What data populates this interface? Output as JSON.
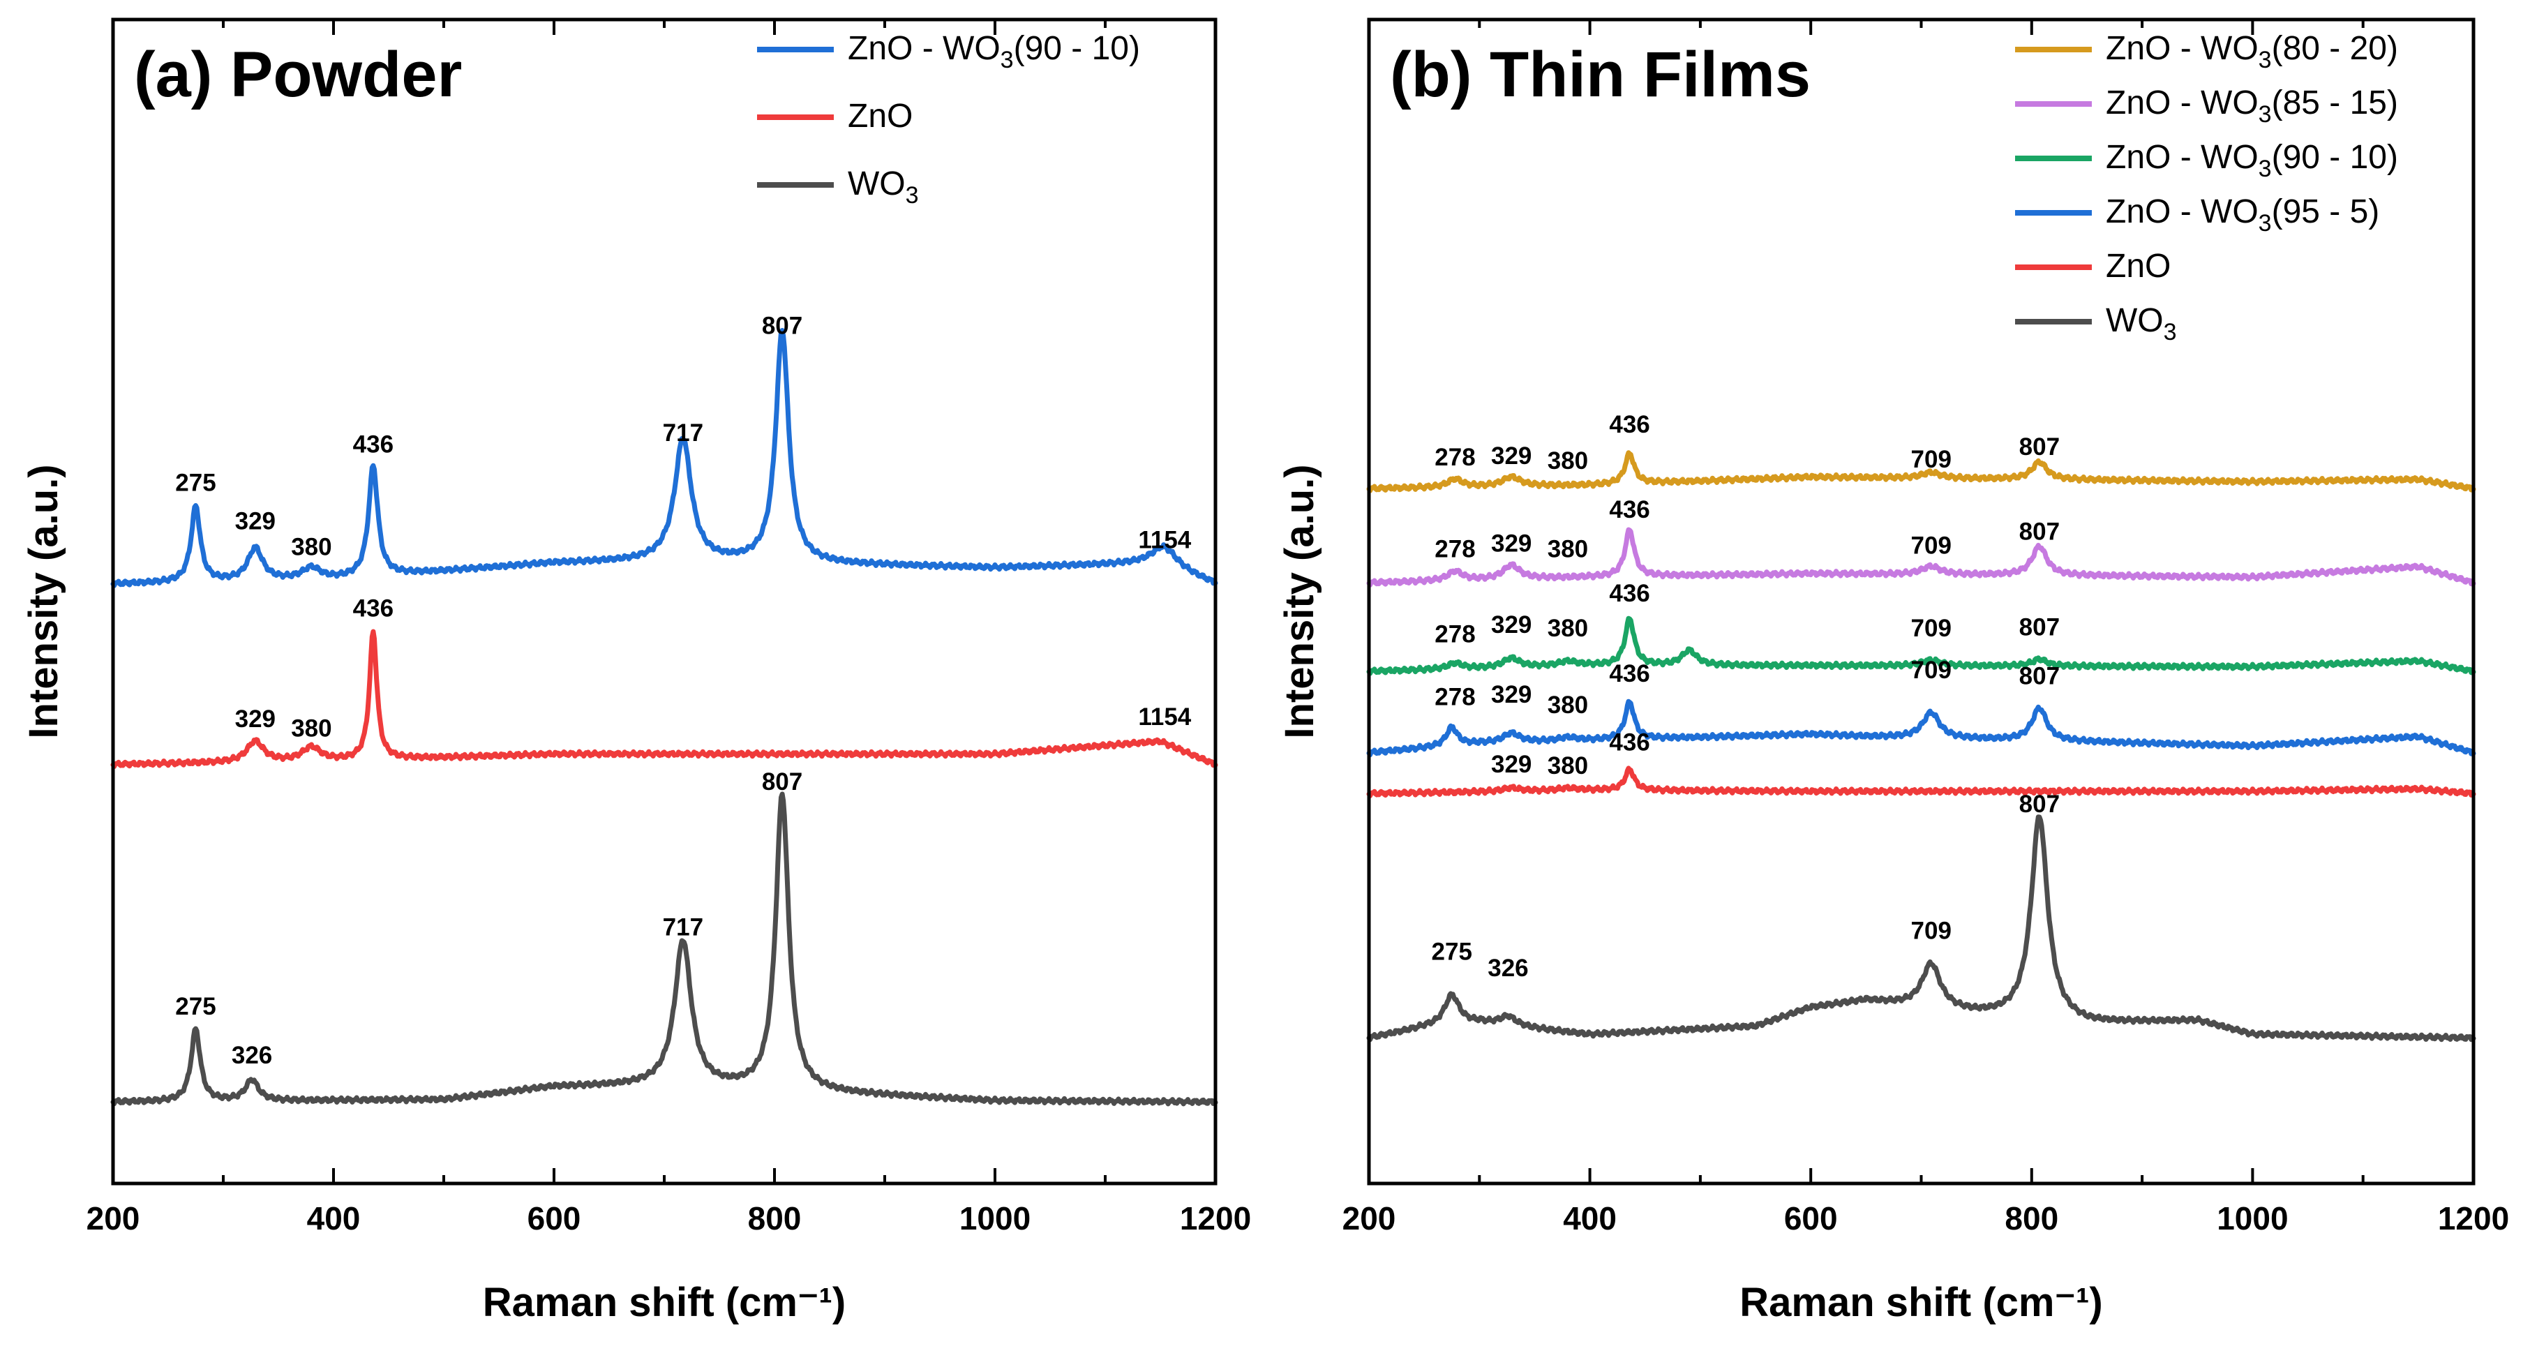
{
  "colors": {
    "blue": "#1f6fd6",
    "red": "#ef3b3b",
    "dark": "#4d4d4d",
    "gold": "#d69a1e",
    "violet": "#c67ae0",
    "green": "#1aa564"
  },
  "chart_data": [
    {
      "type": "line",
      "title": "(a) Powder",
      "xlabel": "Raman shift (cm⁻¹)",
      "ylabel": "Intensity (a.u.)",
      "xlim": [
        200,
        1200
      ],
      "ylim": [
        0,
        100
      ],
      "y_ticks_shown": false,
      "x_ticks": [
        200,
        400,
        600,
        800,
        1000,
        1200
      ],
      "legend_position": "top-right",
      "series": [
        {
          "name": "ZnO - WO3(90 - 10)",
          "color": "blue",
          "baseline": 51.5,
          "background": [
            [
              200,
              0
            ],
            [
              400,
              0.4
            ],
            [
              600,
              1.8
            ],
            [
              700,
              2.0
            ],
            [
              1000,
              1.4
            ],
            [
              1150,
              1.8
            ],
            [
              1200,
              0
            ]
          ],
          "peaks": [
            [
              275,
              6.5,
              5
            ],
            [
              329,
              2.8,
              8
            ],
            [
              380,
              1.0,
              10
            ],
            [
              436,
              9.5,
              5
            ],
            [
              717,
              10.5,
              9
            ],
            [
              807,
              20.0,
              7
            ],
            [
              1154,
              1.5,
              14
            ]
          ]
        },
        {
          "name": "ZnO",
          "color": "red",
          "baseline": 36.0,
          "background": [
            [
              200,
              0
            ],
            [
              400,
              0.3
            ],
            [
              600,
              0.9
            ],
            [
              1000,
              0.9
            ],
            [
              1150,
              2.0
            ],
            [
              1200,
              0
            ]
          ],
          "peaks": [
            [
              329,
              1.8,
              9
            ],
            [
              380,
              1.2,
              10
            ],
            [
              436,
              11.0,
              4
            ]
          ]
        },
        {
          "name": "WO3",
          "color": "dark",
          "baseline": 7.0,
          "background": [
            [
              200,
              0
            ],
            [
              500,
              0.2
            ],
            [
              600,
              1.3
            ],
            [
              700,
              1.4
            ],
            [
              1000,
              0.1
            ],
            [
              1200,
              0
            ]
          ],
          "peaks": [
            [
              275,
              6.2,
              5
            ],
            [
              326,
              1.8,
              7
            ],
            [
              717,
              12.5,
              9
            ],
            [
              807,
              25.5,
              7
            ]
          ]
        }
      ],
      "peak_labels": [
        {
          "text": "275",
          "x": 275,
          "y": 59.5
        },
        {
          "text": "329",
          "x": 329,
          "y": 56.2
        },
        {
          "text": "380",
          "x": 380,
          "y": 54.0
        },
        {
          "text": "436",
          "x": 436,
          "y": 62.8
        },
        {
          "text": "717",
          "x": 717,
          "y": 63.8
        },
        {
          "text": "807",
          "x": 807,
          "y": 73.0
        },
        {
          "text": "1154",
          "x": 1154,
          "y": 54.6
        },
        {
          "text": "436",
          "x": 436,
          "y": 48.7
        },
        {
          "text": "329",
          "x": 329,
          "y": 39.2
        },
        {
          "text": "380",
          "x": 380,
          "y": 38.4
        },
        {
          "text": "1154",
          "x": 1154,
          "y": 39.4
        },
        {
          "text": "807",
          "x": 807,
          "y": 33.8
        },
        {
          "text": "717",
          "x": 717,
          "y": 21.3
        },
        {
          "text": "275",
          "x": 275,
          "y": 14.5
        },
        {
          "text": "326",
          "x": 326,
          "y": 10.3
        }
      ]
    },
    {
      "type": "line",
      "title": "(b) Thin Films",
      "xlabel": "Raman shift (cm⁻¹)",
      "ylabel": "Intensity (a.u.)",
      "xlim": [
        200,
        1200
      ],
      "ylim": [
        0,
        100
      ],
      "y_ticks_shown": false,
      "x_ticks": [
        200,
        400,
        600,
        800,
        1000,
        1200
      ],
      "legend_position": "top-right",
      "series": [
        {
          "name": "ZnO - WO3(80 - 20)",
          "color": "gold",
          "baseline": 59.7,
          "background": [
            [
              200,
              0
            ],
            [
              400,
              0.3
            ],
            [
              600,
              1.0
            ],
            [
              1000,
              0.6
            ],
            [
              1150,
              0.8
            ],
            [
              1200,
              0
            ]
          ],
          "peaks": [
            [
              278,
              0.7,
              8
            ],
            [
              329,
              0.8,
              10
            ],
            [
              436,
              2.6,
              5
            ],
            [
              709,
              0.5,
              10
            ],
            [
              807,
              1.5,
              8
            ]
          ]
        },
        {
          "name": "ZnO - WO3(85 - 15)",
          "color": "violet",
          "baseline": 51.6,
          "background": [
            [
              200,
              0
            ],
            [
              400,
              0.5
            ],
            [
              600,
              0.8
            ],
            [
              1000,
              0.5
            ],
            [
              1150,
              1.4
            ],
            [
              1200,
              0
            ]
          ],
          "peaks": [
            [
              278,
              0.8,
              8
            ],
            [
              329,
              1.2,
              9
            ],
            [
              436,
              4.0,
              5
            ],
            [
              709,
              0.7,
              10
            ],
            [
              807,
              2.5,
              8
            ]
          ]
        },
        {
          "name": "ZnO - WO3(90 - 10)",
          "color": "green",
          "baseline": 44.0,
          "background": [
            [
              200,
              0
            ],
            [
              400,
              0.5
            ],
            [
              600,
              0.5
            ],
            [
              1000,
              0.4
            ],
            [
              1150,
              0.9
            ],
            [
              1200,
              0
            ]
          ],
          "peaks": [
            [
              278,
              0.5,
              8
            ],
            [
              329,
              0.8,
              9
            ],
            [
              380,
              0.4,
              10
            ],
            [
              436,
              4.0,
              5
            ],
            [
              490,
              1.3,
              8
            ],
            [
              709,
              0.5,
              10
            ],
            [
              807,
              0.6,
              8
            ]
          ]
        },
        {
          "name": "ZnO - WO3(95 - 5)",
          "color": "blue",
          "baseline": 37.0,
          "background": [
            [
              200,
              0
            ],
            [
              300,
              0.8
            ],
            [
              600,
              1.6
            ],
            [
              650,
              1.4
            ],
            [
              1000,
              0.6
            ],
            [
              1150,
              1.4
            ],
            [
              1200,
              0
            ]
          ],
          "peaks": [
            [
              275,
              1.6,
              6
            ],
            [
              329,
              0.8,
              9
            ],
            [
              380,
              0.3,
              10
            ],
            [
              436,
              3.2,
              5
            ],
            [
              709,
              2.2,
              9
            ],
            [
              807,
              2.8,
              8
            ]
          ]
        },
        {
          "name": "ZnO",
          "color": "red",
          "baseline": 33.5,
          "background": [
            [
              200,
              0
            ],
            [
              400,
              0.3
            ],
            [
              600,
              0.2
            ],
            [
              1000,
              0.2
            ],
            [
              1150,
              0.4
            ],
            [
              1200,
              0
            ]
          ],
          "peaks": [
            [
              329,
              0.3,
              9
            ],
            [
              380,
              0.2,
              10
            ],
            [
              436,
              1.8,
              5
            ]
          ]
        },
        {
          "name": "WO3",
          "color": "dark",
          "baseline": 12.5,
          "background": [
            [
              200,
              0
            ],
            [
              250,
              0.9
            ],
            [
              300,
              1.3
            ],
            [
              400,
              0.3
            ],
            [
              550,
              1.0
            ],
            [
              600,
              2.6
            ],
            [
              650,
              3.2
            ],
            [
              750,
              2.0
            ],
            [
              850,
              1.2
            ],
            [
              950,
              1.5
            ],
            [
              1000,
              0.3
            ],
            [
              1200,
              0
            ]
          ],
          "peaks": [
            [
              275,
              2.6,
              8
            ],
            [
              326,
              0.8,
              9
            ],
            [
              709,
              3.8,
              10
            ],
            [
              807,
              17.5,
              9
            ]
          ]
        }
      ],
      "peak_labels": [
        {
          "text": "278",
          "x": 278,
          "y": 61.7
        },
        {
          "text": "329",
          "x": 329,
          "y": 61.8
        },
        {
          "text": "380",
          "x": 380,
          "y": 61.4
        },
        {
          "text": "436",
          "x": 436,
          "y": 64.5
        },
        {
          "text": "709",
          "x": 709,
          "y": 61.5
        },
        {
          "text": "807",
          "x": 807,
          "y": 62.6
        },
        {
          "text": "278",
          "x": 278,
          "y": 53.8
        },
        {
          "text": "329",
          "x": 329,
          "y": 54.3
        },
        {
          "text": "380",
          "x": 380,
          "y": 53.8
        },
        {
          "text": "436",
          "x": 436,
          "y": 57.2
        },
        {
          "text": "709",
          "x": 709,
          "y": 54.1
        },
        {
          "text": "807",
          "x": 807,
          "y": 55.3
        },
        {
          "text": "278",
          "x": 278,
          "y": 46.5
        },
        {
          "text": "329",
          "x": 329,
          "y": 47.3
        },
        {
          "text": "380",
          "x": 380,
          "y": 47.0
        },
        {
          "text": "436",
          "x": 436,
          "y": 50.0
        },
        {
          "text": "709",
          "x": 709,
          "y": 47.0
        },
        {
          "text": "807",
          "x": 807,
          "y": 47.1
        },
        {
          "text": "278",
          "x": 278,
          "y": 41.1
        },
        {
          "text": "329",
          "x": 329,
          "y": 41.3
        },
        {
          "text": "380",
          "x": 380,
          "y": 40.4
        },
        {
          "text": "436",
          "x": 436,
          "y": 43.1
        },
        {
          "text": "709",
          "x": 709,
          "y": 43.4
        },
        {
          "text": "807",
          "x": 807,
          "y": 42.9
        },
        {
          "text": "329",
          "x": 329,
          "y": 35.3
        },
        {
          "text": "380",
          "x": 380,
          "y": 35.2
        },
        {
          "text": "436",
          "x": 436,
          "y": 37.2
        },
        {
          "text": "807",
          "x": 807,
          "y": 31.9
        },
        {
          "text": "709",
          "x": 709,
          "y": 21.0
        },
        {
          "text": "275",
          "x": 275,
          "y": 19.2
        },
        {
          "text": "326",
          "x": 326,
          "y": 17.8
        }
      ]
    }
  ]
}
